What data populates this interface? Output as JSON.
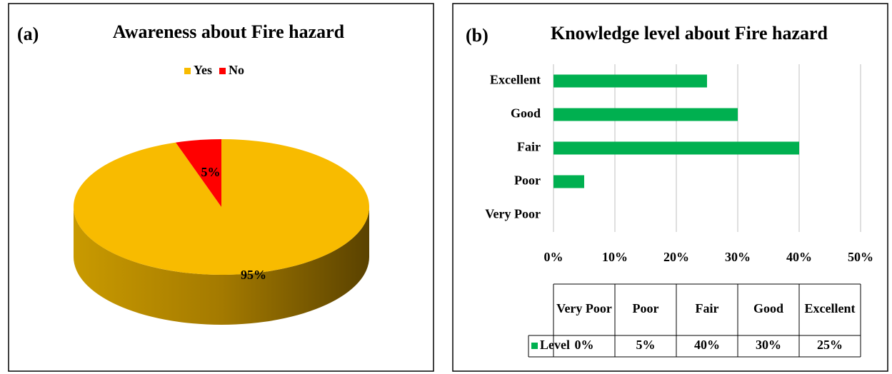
{
  "chart_data": [
    {
      "type": "pie",
      "label": "(a)",
      "title": "Awareness about Fire hazard",
      "categories": [
        "Yes",
        "No"
      ],
      "values": [
        95,
        5
      ],
      "value_labels": [
        "95%",
        "5%"
      ],
      "colors": [
        "#f8bb00",
        "#ff0000"
      ],
      "legend": "top"
    },
    {
      "type": "barh",
      "label": "(b)",
      "title": "Knowledge level about Fire hazard",
      "categories": [
        "Very Poor",
        "Poor",
        "Fair",
        "Good",
        "Excellent"
      ],
      "series": [
        {
          "name": "Level",
          "color": "#00b050",
          "values": [
            0,
            5,
            40,
            30,
            25
          ],
          "value_labels": [
            "0%",
            "5%",
            "40%",
            "30%",
            "25%"
          ]
        }
      ],
      "xlim": [
        0,
        50
      ],
      "xticks": [
        {
          "value": 0,
          "label": "0%"
        },
        {
          "value": 10,
          "label": "10%"
        },
        {
          "value": 20,
          "label": "20%"
        },
        {
          "value": 30,
          "label": "30%"
        },
        {
          "value": 40,
          "label": "40%"
        },
        {
          "value": 50,
          "label": "50%"
        }
      ],
      "grid": true,
      "data_table": true
    }
  ]
}
